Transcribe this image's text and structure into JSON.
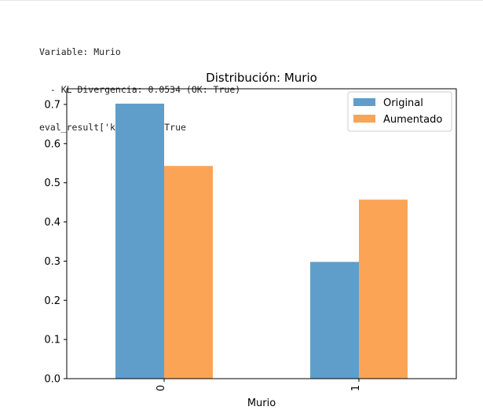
{
  "output": {
    "lines": [
      "Variable: Murio",
      "  - KL Divergencia: 0.0534 (OK: True)",
      "eval_result['kl_ok'] = True"
    ]
  },
  "chart_data": {
    "type": "bar",
    "title": "Distribución: Murio",
    "xlabel": "Murio",
    "ylabel": "",
    "categories": [
      "0",
      "1"
    ],
    "series": [
      {
        "name": "Original",
        "values": [
          0.702,
          0.298
        ],
        "color": "#5f9ecb"
      },
      {
        "name": "Aumentado",
        "values": [
          0.543,
          0.457
        ],
        "color": "#fba456"
      }
    ],
    "ylim": [
      0,
      0.74
    ],
    "yticks": [
      0.0,
      0.1,
      0.2,
      0.3,
      0.4,
      0.5,
      0.6,
      0.7
    ],
    "ytick_labels": [
      "0.0",
      "0.1",
      "0.2",
      "0.3",
      "0.4",
      "0.5",
      "0.6",
      "0.7"
    ],
    "legend_position": "top-right",
    "grid": false
  }
}
